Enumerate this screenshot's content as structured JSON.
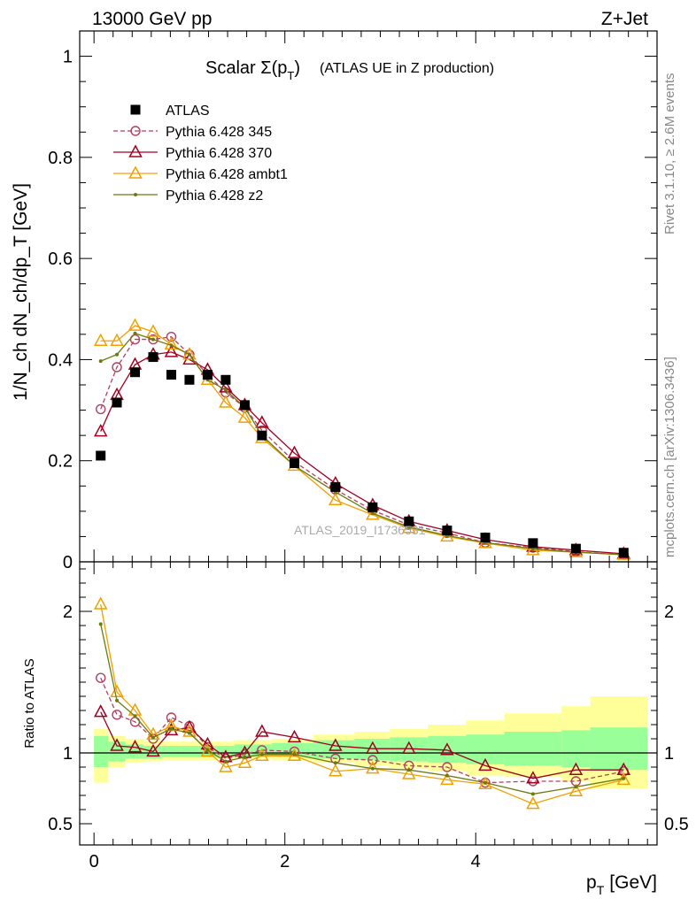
{
  "header": {
    "left": "13000 GeV pp",
    "right": "Z+Jet"
  },
  "side": {
    "top": "Rivet 3.1.10, ≥ 2.6M events",
    "bottom": "mcplots.cern.ch [arXiv:1306.3436]"
  },
  "watermark": "ATLAS_2019_I1736531",
  "chart_data": [
    {
      "type": "scatter",
      "title_main": "Scalar Σ(p",
      "title_sub": "T",
      "title_close": ")",
      "title_paren": "(ATLAS UE in Z production)",
      "ylabel": "1/N_ch dN_ch/dp_T [GeV]",
      "ylim": [
        0,
        1.05
      ],
      "yticks": [
        "0",
        "0.2",
        "0.4",
        "0.6",
        "0.8",
        "1"
      ],
      "x": [
        0.07,
        0.24,
        0.43,
        0.62,
        0.81,
        1.0,
        1.19,
        1.38,
        1.58,
        1.76,
        2.1,
        2.53,
        2.92,
        3.3,
        3.7,
        4.1,
        4.6,
        5.05,
        5.55
      ],
      "series": [
        {
          "name": "ATLAS",
          "color": "#000000",
          "style": "data",
          "values": [
            0.21,
            0.315,
            0.375,
            0.405,
            0.37,
            0.36,
            0.37,
            0.36,
            0.31,
            0.25,
            0.195,
            0.148,
            0.108,
            0.08,
            0.062,
            0.048,
            0.037,
            0.026,
            0.018
          ]
        },
        {
          "name": "Pythia 6.428 345",
          "color": "#b04060",
          "style": "circle-dashed",
          "values": [
            0.302,
            0.385,
            0.44,
            0.44,
            0.445,
            0.41,
            0.37,
            0.335,
            0.305,
            0.26,
            0.198,
            0.143,
            0.102,
            0.073,
            0.057,
            0.038,
            0.028,
            0.02,
            0.014
          ]
        },
        {
          "name": "Pythia 6.428 370",
          "color": "#a00020",
          "style": "triangle-solid",
          "values": [
            0.258,
            0.33,
            0.39,
            0.41,
            0.415,
            0.4,
            0.38,
            0.345,
            0.31,
            0.275,
            0.215,
            0.155,
            0.112,
            0.08,
            0.062,
            0.044,
            0.03,
            0.023,
            0.016
          ]
        },
        {
          "name": "Pythia 6.428 ambt1",
          "color": "#f0a000",
          "style": "triangle-solid",
          "values": [
            0.437,
            0.437,
            0.467,
            0.455,
            0.43,
            0.41,
            0.36,
            0.315,
            0.285,
            0.245,
            0.19,
            0.122,
            0.093,
            0.067,
            0.05,
            0.037,
            0.023,
            0.019,
            0.014
          ]
        },
        {
          "name": "Pythia 6.428 z2",
          "color": "#6b7a10",
          "style": "dot-solid",
          "values": [
            0.397,
            0.41,
            0.452,
            0.44,
            0.428,
            0.41,
            0.36,
            0.34,
            0.305,
            0.25,
            0.19,
            0.138,
            0.096,
            0.069,
            0.052,
            0.038,
            0.026,
            0.019,
            0.014
          ]
        }
      ]
    },
    {
      "type": "scatter",
      "ylabel": "Ratio to ATLAS",
      "ylim": [
        0.35,
        2.35
      ],
      "yticks": [
        "0.5",
        "1",
        "2"
      ],
      "xlabel_main": "p",
      "xlabel_sub": "T",
      "xlabel_unit": "[GeV]",
      "xlim": [
        -0.15,
        5.9
      ],
      "xticks": [
        "0",
        "2",
        "4"
      ],
      "x": [
        0.07,
        0.24,
        0.43,
        0.62,
        0.81,
        1.0,
        1.19,
        1.38,
        1.58,
        1.76,
        2.1,
        2.53,
        2.92,
        3.3,
        3.7,
        4.1,
        4.6,
        5.05,
        5.55
      ],
      "band_edges": [
        0.0,
        0.15,
        0.33,
        0.52,
        0.71,
        0.9,
        1.1,
        1.28,
        1.47,
        1.67,
        1.86,
        2.3,
        2.73,
        3.1,
        3.5,
        3.9,
        4.3,
        4.9,
        5.2,
        5.8
      ],
      "band_yellow_low": [
        0.79,
        0.9,
        0.93,
        0.94,
        0.95,
        0.95,
        0.95,
        0.96,
        0.96,
        0.96,
        0.95,
        0.93,
        0.91,
        0.89,
        0.87,
        0.84,
        0.83,
        0.8,
        0.75
      ],
      "band_yellow_high": [
        1.17,
        1.12,
        1.1,
        1.09,
        1.08,
        1.08,
        1.08,
        1.08,
        1.09,
        1.09,
        1.1,
        1.13,
        1.15,
        1.17,
        1.2,
        1.23,
        1.28,
        1.33,
        1.4
      ],
      "band_green_low": [
        0.9,
        0.94,
        0.96,
        0.96,
        0.97,
        0.97,
        0.97,
        0.97,
        0.97,
        0.97,
        0.97,
        0.96,
        0.95,
        0.94,
        0.93,
        0.92,
        0.91,
        0.9,
        0.88
      ],
      "band_green_high": [
        1.12,
        1.08,
        1.06,
        1.05,
        1.05,
        1.05,
        1.05,
        1.05,
        1.06,
        1.06,
        1.07,
        1.09,
        1.1,
        1.11,
        1.12,
        1.13,
        1.15,
        1.16,
        1.18
      ],
      "series": [
        {
          "name": "Pythia 6.428 345",
          "color": "#b04060",
          "style": "circle-dashed",
          "values": [
            1.53,
            1.27,
            1.22,
            1.1,
            1.25,
            1.19,
            1.04,
            0.96,
            0.99,
            1.02,
            1.01,
            0.96,
            0.95,
            0.91,
            0.9,
            0.79,
            0.8,
            0.8,
            0.87
          ]
        },
        {
          "name": "Pythia 6.428 370",
          "color": "#a00020",
          "style": "triangle-solid",
          "values": [
            1.29,
            1.05,
            1.04,
            1.01,
            1.16,
            1.18,
            1.06,
            0.97,
            1.0,
            1.15,
            1.11,
            1.05,
            1.03,
            1.03,
            1.02,
            0.91,
            0.82,
            0.88,
            0.88
          ]
        },
        {
          "name": "Pythia 6.428 ambt1",
          "color": "#f0a000",
          "style": "triangle-solid",
          "values": [
            2.05,
            1.43,
            1.3,
            1.13,
            1.19,
            1.15,
            1.01,
            0.9,
            0.93,
            0.98,
            0.98,
            0.87,
            0.89,
            0.85,
            0.81,
            0.78,
            0.64,
            0.73,
            0.81
          ]
        },
        {
          "name": "Pythia 6.428 z2",
          "color": "#6b7a10",
          "style": "dot-solid",
          "values": [
            1.91,
            1.37,
            1.26,
            1.11,
            1.17,
            1.14,
            1.02,
            0.94,
            0.97,
            0.99,
            0.99,
            0.93,
            0.89,
            0.88,
            0.84,
            0.79,
            0.71,
            0.76,
            0.82
          ]
        }
      ]
    }
  ]
}
